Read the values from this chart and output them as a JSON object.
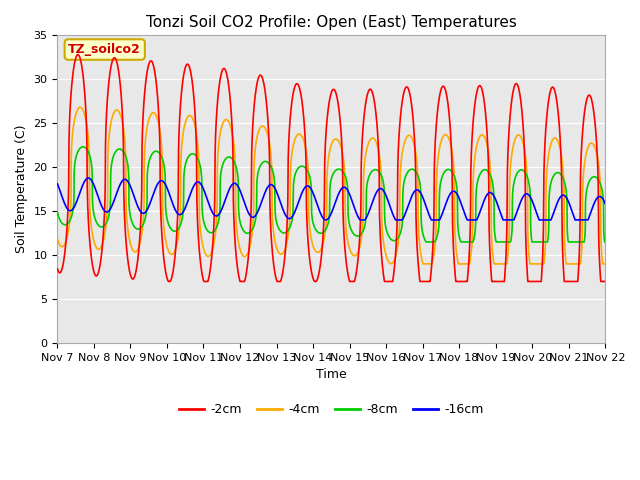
{
  "title": "Tonzi Soil CO2 Profile: Open (East) Temperatures",
  "xlabel": "Time",
  "ylabel": "Soil Temperature (C)",
  "ylim": [
    0,
    35
  ],
  "xtick_labels": [
    "Nov 7",
    "Nov 8",
    "Nov 9",
    "Nov 10",
    "Nov 11",
    "Nov 12",
    "Nov 13",
    "Nov 14",
    "Nov 15",
    "Nov 16",
    "Nov 17",
    "Nov 18",
    "Nov 19",
    "Nov 20",
    "Nov 21",
    "Nov 22"
  ],
  "legend_label": "TZ_soilco2",
  "series_labels": [
    "-2cm",
    "-4cm",
    "-8cm",
    "-16cm"
  ],
  "series_colors": [
    "#ff0000",
    "#ffaa00",
    "#00cc00",
    "#0000ff"
  ],
  "fig_bg_color": "#ffffff",
  "plot_bg_color": "#e8e8e8",
  "grid_color": "#ffffff",
  "title_fontsize": 11,
  "axis_fontsize": 9,
  "tick_fontsize": 8,
  "legend_fontsize": 9,
  "legend_box_color": "#ffffcc",
  "legend_box_edge": "#ccaa00"
}
